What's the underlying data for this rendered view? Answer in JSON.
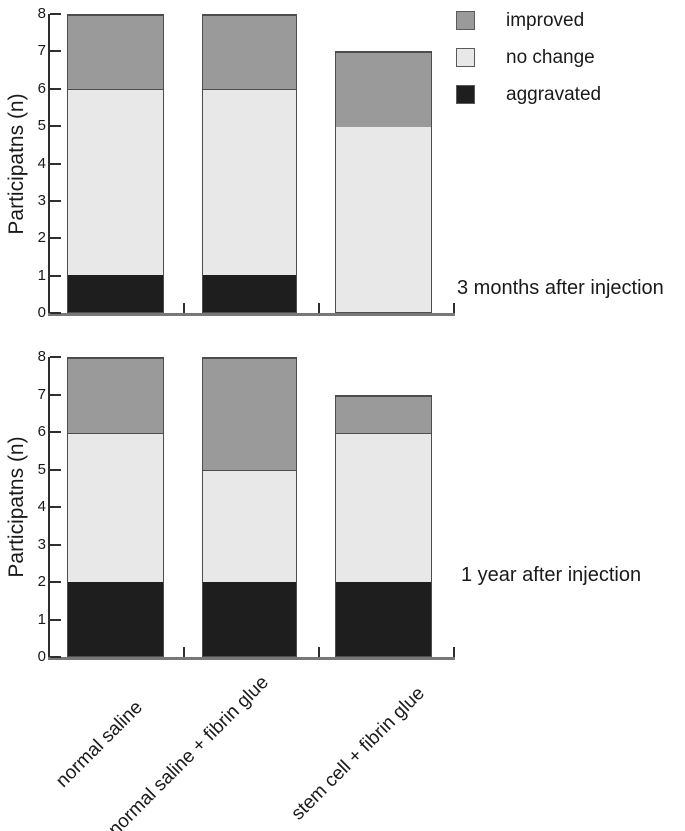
{
  "figure": {
    "y_axis_label": "Participatns (n)",
    "categories": [
      "normal saline",
      "normal saline + fibrin glue",
      "stem cell + fibrin glue"
    ],
    "legend": [
      {
        "label": "improved",
        "color": "#9a9a9a"
      },
      {
        "label": "no change",
        "color": "#e8e8e8"
      },
      {
        "label": "aggravated",
        "color": "#1e1e1e"
      }
    ]
  },
  "chart_data": [
    {
      "type": "bar",
      "stacked": true,
      "annotation": "3 months after injection",
      "title": "3 months after injection",
      "categories": [
        "normal saline",
        "normal saline + fibrin glue",
        "stem cell + fibrin glue"
      ],
      "ylabel": "Participatns (n)",
      "ylim": [
        0,
        8
      ],
      "y_ticks": [
        0,
        1,
        2,
        3,
        4,
        5,
        6,
        7,
        8
      ],
      "legend_position": "top-right",
      "grid": false,
      "series": [
        {
          "name": "aggravated",
          "color": "#1e1e1e",
          "values": [
            1,
            1,
            0
          ]
        },
        {
          "name": "no change",
          "color": "#e8e8e8",
          "values": [
            5,
            5,
            5
          ]
        },
        {
          "name": "improved",
          "color": "#9a9a9a",
          "values": [
            2,
            2,
            2
          ]
        }
      ],
      "totals": [
        8,
        8,
        7
      ]
    },
    {
      "type": "bar",
      "stacked": true,
      "annotation": "1 year after injection",
      "title": "1 year after injection",
      "categories": [
        "normal saline",
        "normal saline + fibrin glue",
        "stem cell + fibrin glue"
      ],
      "ylabel": "Participatns (n)",
      "ylim": [
        0,
        8
      ],
      "y_ticks": [
        0,
        1,
        2,
        3,
        4,
        5,
        6,
        7,
        8
      ],
      "grid": false,
      "series": [
        {
          "name": "aggravated",
          "color": "#1e1e1e",
          "values": [
            2,
            2,
            2
          ]
        },
        {
          "name": "no change",
          "color": "#e8e8e8",
          "values": [
            4,
            3,
            4
          ]
        },
        {
          "name": "improved",
          "color": "#9a9a9a",
          "values": [
            2,
            3,
            1
          ]
        }
      ],
      "totals": [
        8,
        8,
        7
      ]
    }
  ]
}
